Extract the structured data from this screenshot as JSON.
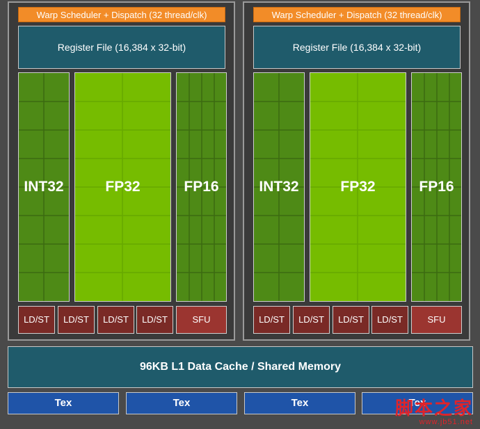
{
  "processing_blocks": [
    {
      "warp_label": "Warp Scheduler + Dispatch (32 thread/clk)",
      "register_file": "Register File (16,384 x 32-bit)",
      "units": {
        "int": "INT32",
        "fp32": "FP32",
        "fp16": "FP16"
      },
      "ldst": [
        "LD/ST",
        "LD/ST",
        "LD/ST",
        "LD/ST"
      ],
      "sfu": "SFU"
    },
    {
      "warp_label": "Warp Scheduler + Dispatch (32 thread/clk)",
      "register_file": "Register File (16,384 x 32-bit)",
      "units": {
        "int": "INT32",
        "fp32": "FP32",
        "fp16": "FP16"
      },
      "ldst": [
        "LD/ST",
        "LD/ST",
        "LD/ST",
        "LD/ST"
      ],
      "sfu": "SFU"
    }
  ],
  "l1_cache": "96KB L1 Data Cache / Shared Memory",
  "tex_units": [
    "Tex",
    "Tex",
    "Tex",
    "Tex"
  ],
  "watermark": {
    "text": "脚本之家",
    "url": "www.jb51.net"
  },
  "colors": {
    "warp": "#f28c28",
    "register_file": "#1f5b6b",
    "int_fp16": "#4e8a16",
    "fp32": "#76bc00",
    "ldst": "#7a2a26",
    "sfu": "#9b3530",
    "tex": "#1f54a8"
  }
}
